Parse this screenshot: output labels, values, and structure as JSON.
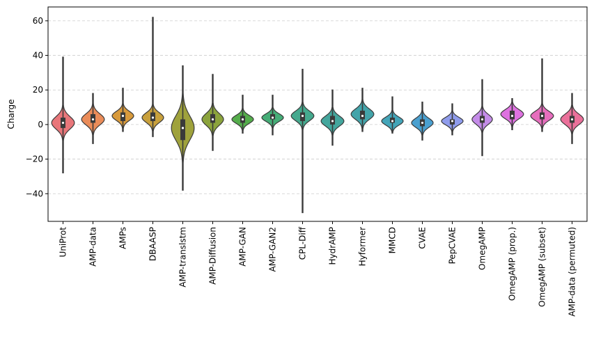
{
  "chart_data": {
    "type": "violin",
    "title": "",
    "xlabel": "",
    "ylabel": "Charge",
    "ylim": [
      -56,
      68
    ],
    "yticks": [
      -40,
      -20,
      0,
      20,
      40,
      60
    ],
    "grid": "y-dashed",
    "categories": [
      "UniProt",
      "AMP-data",
      "AMPs",
      "DBAASP",
      "AMP-translstm",
      "AMP-Diffusion",
      "AMP-GAN",
      "AMP-GAN2",
      "CPL-Diff",
      "HydrAMP",
      "Hyformer",
      "MMCD",
      "CVAE",
      "PepCVAE",
      "OmegAMP",
      "OmegAMP (prop.)",
      "OmegAMP (subset)",
      "AMP-data (permuted)"
    ],
    "colors": [
      "#e8767a",
      "#ea8c59",
      "#d89a3c",
      "#c8a03c",
      "#9fa23c",
      "#8ba33c",
      "#55ad4c",
      "#45ad77",
      "#45a98e",
      "#44a69d",
      "#43a4aa",
      "#44a5b9",
      "#4aa0d0",
      "#8f9cec",
      "#c48ce8",
      "#de72e0",
      "#e66ebd",
      "#ea709a"
    ],
    "series": [
      {
        "name": "UniProt",
        "min": -28,
        "q1": -2,
        "median": 1,
        "q3": 4,
        "max": 39,
        "width": 0.95,
        "sigma": 3.6,
        "mode": 1
      },
      {
        "name": "AMP-data",
        "min": -11,
        "q1": 1,
        "median": 3,
        "q3": 6,
        "max": 18,
        "width": 0.95,
        "sigma": 3.2,
        "mode": 3
      },
      {
        "name": "AMPs",
        "min": -4,
        "q1": 2,
        "median": 5,
        "q3": 7,
        "max": 21,
        "width": 0.9,
        "sigma": 2.6,
        "mode": 5
      },
      {
        "name": "DBAASP",
        "min": -7,
        "q1": 2,
        "median": 4,
        "q3": 7,
        "max": 62,
        "width": 0.9,
        "sigma": 2.8,
        "mode": 4
      },
      {
        "name": "AMP-translstm",
        "min": -38,
        "q1": -9,
        "median": -2,
        "q3": 3,
        "max": 34,
        "width": 0.95,
        "sigma": 7.0,
        "mode": -2
      },
      {
        "name": "AMP-Diffusion",
        "min": -15,
        "q1": 1,
        "median": 3,
        "q3": 6,
        "max": 29,
        "width": 0.9,
        "sigma": 3.4,
        "mode": 3
      },
      {
        "name": "AMP-GAN",
        "min": -5,
        "q1": 1,
        "median": 3,
        "q3": 5,
        "max": 17,
        "width": 0.9,
        "sigma": 2.3,
        "mode": 3
      },
      {
        "name": "AMP-GAN2",
        "min": -6,
        "q1": 3,
        "median": 4,
        "q3": 6,
        "max": 17,
        "width": 0.9,
        "sigma": 2.2,
        "mode": 4
      },
      {
        "name": "CPL-Diff",
        "min": -51,
        "q1": 2,
        "median": 5,
        "q3": 7,
        "max": 32,
        "width": 0.95,
        "sigma": 2.8,
        "mode": 5
      },
      {
        "name": "HydrAMP",
        "min": -12,
        "q1": 0,
        "median": 2,
        "q3": 5,
        "max": 20,
        "width": 0.95,
        "sigma": 2.9,
        "mode": 2
      },
      {
        "name": "Hyformer",
        "min": -4,
        "q1": 3,
        "median": 5,
        "q3": 8,
        "max": 21,
        "width": 0.95,
        "sigma": 3.0,
        "mode": 6
      },
      {
        "name": "MMCD",
        "min": -5,
        "q1": 1,
        "median": 2,
        "q3": 4,
        "max": 16,
        "width": 0.9,
        "sigma": 2.3,
        "mode": 2
      },
      {
        "name": "CVAE",
        "min": -9,
        "q1": -1,
        "median": 1,
        "q3": 3,
        "max": 13,
        "width": 0.9,
        "sigma": 2.6,
        "mode": 1
      },
      {
        "name": "PepCVAE",
        "min": -6,
        "q1": 0,
        "median": 2,
        "q3": 3,
        "max": 12,
        "width": 0.9,
        "sigma": 2.2,
        "mode": 2
      },
      {
        "name": "OmegAMP",
        "min": -18,
        "q1": 1,
        "median": 3,
        "q3": 5,
        "max": 26,
        "width": 0.85,
        "sigma": 2.8,
        "mode": 3
      },
      {
        "name": "OmegAMP (prop.)",
        "min": -3,
        "q1": 3,
        "median": 5,
        "q3": 8,
        "max": 15,
        "width": 0.95,
        "sigma": 2.6,
        "mode": 6
      },
      {
        "name": "OmegAMP (subset)",
        "min": -4,
        "q1": 3,
        "median": 5,
        "q3": 7,
        "max": 38,
        "width": 0.95,
        "sigma": 2.6,
        "mode": 5
      },
      {
        "name": "AMP-data (permuted)",
        "min": -11,
        "q1": 1,
        "median": 3,
        "q3": 5,
        "max": 18,
        "width": 0.95,
        "sigma": 3.0,
        "mode": 3
      }
    ]
  }
}
